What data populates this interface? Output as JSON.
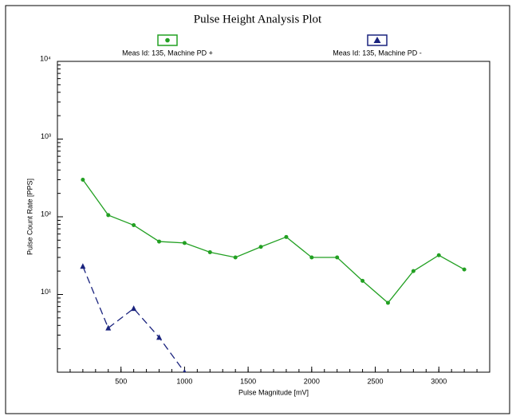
{
  "chart_data": {
    "type": "line",
    "title": "Pulse Height Analysis Plot",
    "x_label": "Pulse Magnitude [mV]",
    "y_label": "Pulse Count Rate [PPS]",
    "log_y": true,
    "xlim": [
      0,
      3400
    ],
    "xticks": [
      500,
      1000,
      1500,
      2000,
      2500,
      3000
    ],
    "ylim": [
      1,
      10000
    ],
    "yticks": [
      {
        "value": 10,
        "label": "10¹"
      },
      {
        "value": 100,
        "label": "10²"
      },
      {
        "value": 1000,
        "label": "10³"
      },
      {
        "value": 10000,
        "label": "10⁴"
      }
    ],
    "x": [
      200,
      400,
      600,
      800,
      1000,
      1200,
      1400,
      1600,
      1800,
      2000,
      2200,
      2400,
      2600,
      2800,
      3000,
      3200
    ],
    "series": [
      {
        "name": "Meas Id: 135, Machine PD +",
        "color": "#22a022",
        "marker": "circle",
        "dashed": false,
        "values": [
          300,
          105,
          78,
          48,
          46,
          35,
          30,
          41,
          55,
          30,
          30,
          15,
          7.8,
          20,
          32,
          21
        ]
      },
      {
        "name": "Meas Id: 135, Machine PD -",
        "color": "#1a237e",
        "marker": "triangle",
        "dashed": true,
        "values": [
          23,
          3.7,
          6.6,
          2.8,
          1,
          null,
          null,
          null,
          null,
          null,
          null,
          null,
          null,
          null,
          null,
          null
        ]
      }
    ]
  }
}
